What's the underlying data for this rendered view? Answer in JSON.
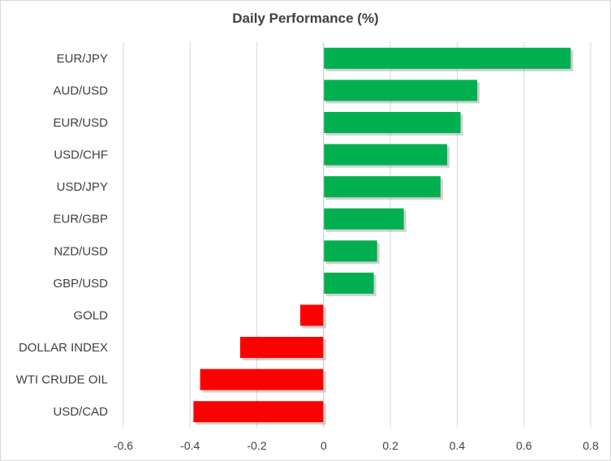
{
  "chart_data": {
    "type": "bar",
    "orientation": "horizontal",
    "title": "Daily Performance (%)",
    "xlabel": "",
    "ylabel": "",
    "xlim": [
      -0.6,
      0.8
    ],
    "x_ticks": [
      -0.6,
      -0.4,
      -0.2,
      0,
      0.2,
      0.4,
      0.6,
      0.8
    ],
    "x_tick_labels": [
      "-0.6",
      "-0.4",
      "-0.2",
      "0",
      "0.2",
      "0.4",
      "0.6",
      "0.8"
    ],
    "grid": "vertical",
    "legend": "none",
    "categories": [
      "EUR/JPY",
      "AUD/USD",
      "EUR/USD",
      "USD/CHF",
      "USD/JPY",
      "EUR/GBP",
      "NZD/USD",
      "GBP/USD",
      "GOLD",
      "DOLLAR INDEX",
      "WTI CRUDE OIL",
      "USD/CAD"
    ],
    "values": [
      0.74,
      0.46,
      0.41,
      0.37,
      0.35,
      0.24,
      0.16,
      0.15,
      -0.07,
      -0.25,
      -0.37,
      -0.39
    ],
    "colors": {
      "positive": "#00b050",
      "negative": "#ff0000",
      "grid": "#d9d9d9",
      "axis": "#bfbfbf",
      "text": "#404040"
    }
  }
}
